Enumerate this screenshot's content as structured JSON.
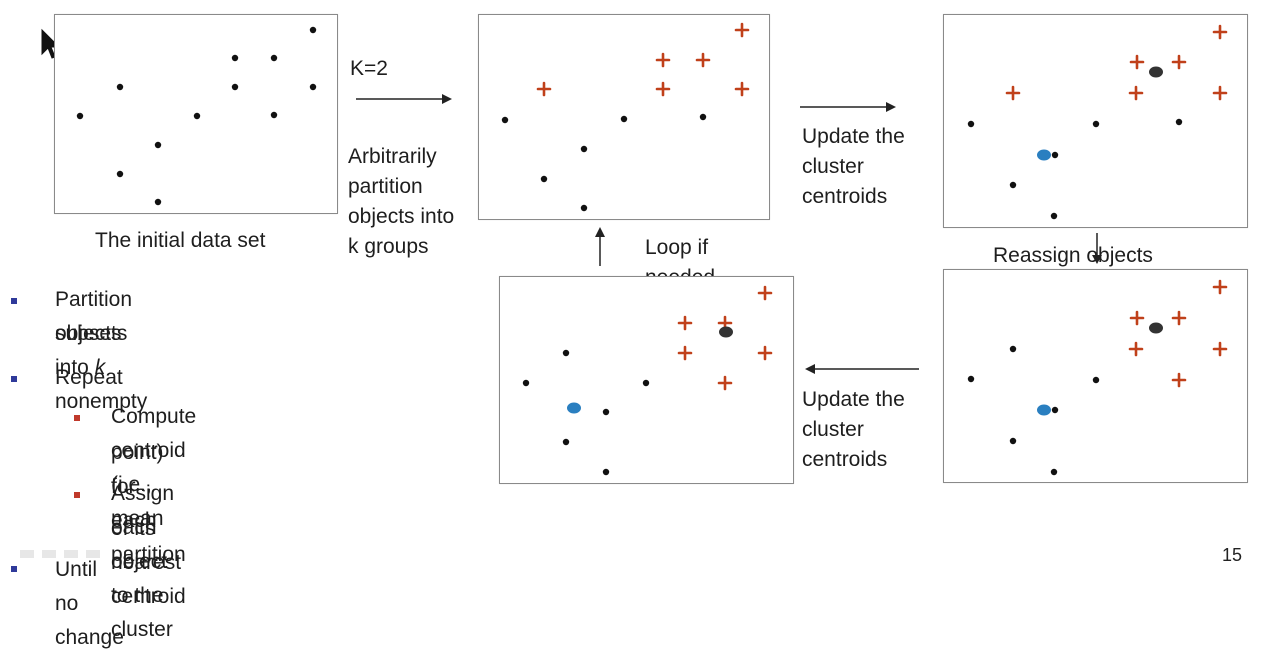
{
  "captions": {
    "initial": "The initial data set",
    "k_label": "K=2",
    "partition": [
      "Arbitrarily",
      "partition",
      "objects into",
      "k groups"
    ],
    "update_top": [
      "Update the",
      "cluster",
      "centroids"
    ],
    "reassign": "Reassign objects",
    "loop": [
      "Loop if",
      "needed"
    ],
    "update_bottom": [
      "Update the",
      "cluster",
      "centroids"
    ]
  },
  "bullets": {
    "b1_pre": "Partition objects into ",
    "b1_k": "k",
    "b1_post": " nonempty",
    "b1_line2": "subsets",
    "b2": "Repeat",
    "b3_line1": "Compute centroid (i.e., mean",
    "b3_line2": "point) for each partition",
    "b4_line1": "Assign each object to the cluster",
    "b4_line2": "of its nearest centroid",
    "b5": "Until no change"
  },
  "page_number": "15",
  "colors": {
    "dot": "#111111",
    "plus": "#c0401a",
    "centroid_blue": "#2a7fc0",
    "centroid_dark": "#333333",
    "bullet_blue": "#2f3a9a",
    "bullet_red": "#c0392b"
  },
  "icons": [
    "cursor-arrow-icon",
    "arrow-right-icon",
    "arrow-left-icon",
    "arrow-down-icon",
    "arrow-up-icon"
  ]
}
